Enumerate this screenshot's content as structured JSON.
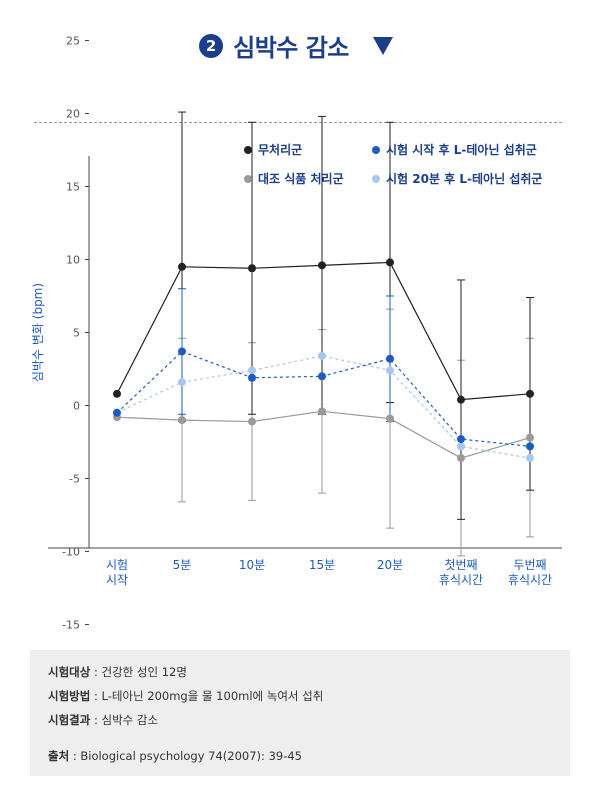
{
  "header": {
    "number": "2",
    "title": "심박수 감소"
  },
  "chart_data": {
    "type": "line",
    "ylabel": "심박수 변화 (bpm)",
    "xlabel": "",
    "ylim": [
      -19,
      35
    ],
    "yticks": [
      25,
      20,
      15,
      10,
      5,
      0,
      -5,
      -10,
      -15
    ],
    "categories": [
      [
        "시험",
        "시작"
      ],
      [
        "5분"
      ],
      [
        "10분"
      ],
      [
        "15분"
      ],
      [
        "20분"
      ],
      [
        "첫번째",
        "휴식시간"
      ],
      [
        "두번째",
        "휴식시간"
      ]
    ],
    "legend_position": "top",
    "grid": false,
    "series": [
      {
        "name": "무처리군",
        "color": "#222222",
        "style": "solid",
        "values": [
          0.8,
          9.5,
          9.4,
          9.6,
          9.8,
          0.4,
          0.8
        ],
        "error": [
          null,
          10.6,
          10.0,
          10.2,
          9.6,
          8.2,
          6.6
        ]
      },
      {
        "name": "시험 시작 후 L-테아닌 섭취군",
        "color": "#1f5bbf",
        "style": "dashed",
        "values": [
          -0.5,
          3.7,
          1.9,
          2.0,
          3.2,
          -2.3,
          -2.8
        ],
        "error": [
          null,
          4.3,
          null,
          null,
          4.3,
          null,
          null
        ]
      },
      {
        "name": "대조 식품 처리군",
        "color": "#9a9a9a",
        "style": "solid",
        "values": [
          -0.8,
          -1.0,
          -1.1,
          -0.4,
          -0.9,
          -3.6,
          -2.2
        ],
        "error": [
          null,
          5.6,
          5.4,
          5.6,
          7.5,
          6.7,
          6.8
        ]
      },
      {
        "name": "시험 20분 후 L-테아닌 섭취군",
        "color": "#a9c6ee",
        "style": "dashed",
        "values": [
          -0.5,
          1.6,
          2.4,
          3.4,
          2.4,
          -2.8,
          -3.6
        ],
        "error": [
          null,
          null,
          null,
          null,
          null,
          null,
          null
        ]
      }
    ],
    "legend_order": [
      0,
      1,
      2,
      3
    ]
  },
  "notes": {
    "items": [
      {
        "key": "시험대상",
        "value": " : 건강한 성인 12명"
      },
      {
        "key": "시험방법",
        "value": " : L-테아닌 200mg을 물 100ml에 녹여서 섭취"
      },
      {
        "key": "시험결과",
        "value": " : 심박수 감소"
      }
    ],
    "source_key": "출처",
    "source_value": " : Biological psychology 74(2007): 39-45"
  }
}
